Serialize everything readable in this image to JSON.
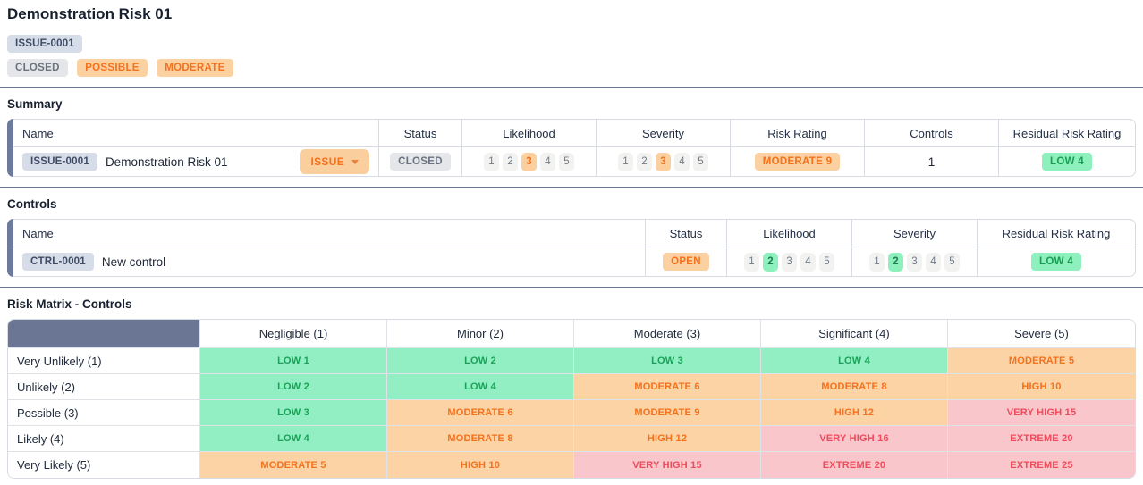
{
  "page": {
    "title": "Demonstration Risk 01",
    "id_badge": "ISSUE-0001",
    "status_badges": [
      {
        "label": "CLOSED",
        "kind": "gray"
      },
      {
        "label": "POSSIBLE",
        "kind": "orange"
      },
      {
        "label": "MODERATE",
        "kind": "orange"
      }
    ]
  },
  "summary": {
    "heading": "Summary",
    "columns": [
      "Name",
      "Status",
      "Likelihood",
      "Severity",
      "Risk Rating",
      "Controls",
      "Residual Risk Rating"
    ],
    "row": {
      "id": "ISSUE-0001",
      "name": "Demonstration Risk 01",
      "type_label": "ISSUE",
      "status": "CLOSED",
      "likelihood": {
        "scale": [
          "1",
          "2",
          "3",
          "4",
          "5"
        ],
        "selected": "3"
      },
      "severity": {
        "scale": [
          "1",
          "2",
          "3",
          "4",
          "5"
        ],
        "selected": "3"
      },
      "risk_rating": "MODERATE 9",
      "controls_count": "1",
      "residual_risk_rating": "LOW 4"
    }
  },
  "controls": {
    "heading": "Controls",
    "columns": [
      "Name",
      "Status",
      "Likelihood",
      "Severity",
      "Residual Risk Rating"
    ],
    "row": {
      "id": "CTRL-0001",
      "name": "New control",
      "status": "OPEN",
      "likelihood": {
        "scale": [
          "1",
          "2",
          "3",
          "4",
          "5"
        ],
        "selected": "2"
      },
      "severity": {
        "scale": [
          "1",
          "2",
          "3",
          "4",
          "5"
        ],
        "selected": "2"
      },
      "residual_risk_rating": "LOW 4"
    }
  },
  "matrix": {
    "heading": "Risk Matrix - Controls",
    "column_headers": [
      "Negligible (1)",
      "Minor (2)",
      "Moderate (3)",
      "Significant (4)",
      "Severe (5)"
    ],
    "rows": [
      {
        "label": "Very Unlikely (1)",
        "cells": [
          {
            "label": "LOW 1",
            "level": "low"
          },
          {
            "label": "LOW 2",
            "level": "low"
          },
          {
            "label": "LOW 3",
            "level": "low"
          },
          {
            "label": "LOW 4",
            "level": "low"
          },
          {
            "label": "MODERATE 5",
            "level": "moderate"
          }
        ]
      },
      {
        "label": "Unlikely (2)",
        "cells": [
          {
            "label": "LOW 2",
            "level": "low"
          },
          {
            "label": "LOW 4",
            "level": "low"
          },
          {
            "label": "MODERATE 6",
            "level": "moderate"
          },
          {
            "label": "MODERATE 8",
            "level": "moderate"
          },
          {
            "label": "HIGH 10",
            "level": "high"
          }
        ]
      },
      {
        "label": "Possible (3)",
        "cells": [
          {
            "label": "LOW 3",
            "level": "low"
          },
          {
            "label": "MODERATE 6",
            "level": "moderate"
          },
          {
            "label": "MODERATE 9",
            "level": "moderate"
          },
          {
            "label": "HIGH 12",
            "level": "high"
          },
          {
            "label": "VERY HIGH 15",
            "level": "very-high"
          }
        ]
      },
      {
        "label": "Likely (4)",
        "cells": [
          {
            "label": "LOW 4",
            "level": "low"
          },
          {
            "label": "MODERATE 8",
            "level": "moderate"
          },
          {
            "label": "HIGH 12",
            "level": "high"
          },
          {
            "label": "VERY HIGH 16",
            "level": "very-high"
          },
          {
            "label": "EXTREME 20",
            "level": "extreme"
          }
        ]
      },
      {
        "label": "Very Likely (5)",
        "cells": [
          {
            "label": "MODERATE 5",
            "level": "moderate"
          },
          {
            "label": "HIGH 10",
            "level": "high"
          },
          {
            "label": "VERY HIGH 15",
            "level": "very-high"
          },
          {
            "label": "EXTREME 20",
            "level": "extreme"
          },
          {
            "label": "EXTREME 25",
            "level": "extreme"
          }
        ]
      }
    ]
  },
  "colors": {
    "accent_slate": "#6e7a9c",
    "divider": "#6b7591",
    "orange_bg": "#fbd3a4",
    "orange_text": "#f4711d",
    "green_bg": "#91efc3",
    "green_text": "#18a356",
    "pink_bg": "#f9c6cb",
    "red_text": "#ee4b5b"
  }
}
